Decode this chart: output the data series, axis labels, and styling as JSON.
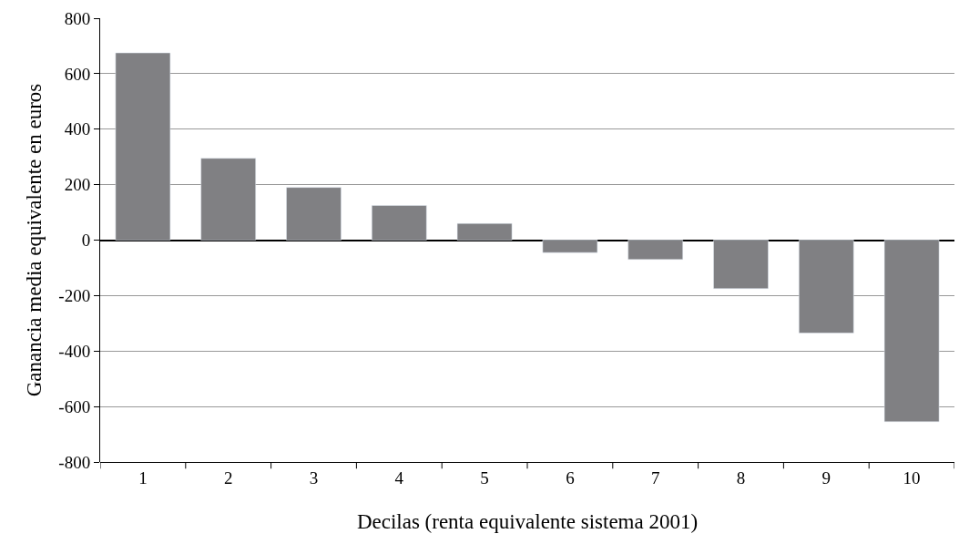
{
  "chart_data": {
    "type": "bar",
    "xlabel": "Decilas (renta equivalente sistema 2001)",
    "ylabel": "Ganancia media equivalente en euros",
    "categories": [
      "1",
      "2",
      "3",
      "4",
      "5",
      "6",
      "7",
      "8",
      "9",
      "10"
    ],
    "values": [
      675,
      295,
      190,
      125,
      60,
      -45,
      -70,
      -175,
      -335,
      -655
    ],
    "color": "#808083",
    "ylim": [
      -800,
      800
    ],
    "yticks": [
      -800,
      -600,
      -400,
      -200,
      0,
      200,
      400,
      600,
      800
    ],
    "grid": "y"
  }
}
